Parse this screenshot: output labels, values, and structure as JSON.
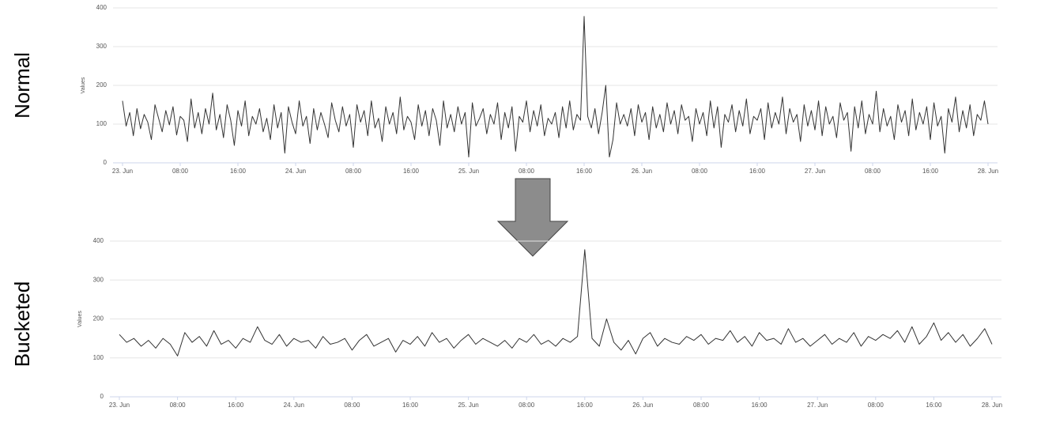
{
  "chart_data": [
    {
      "type": "line",
      "title": "Normal",
      "y_label": "Values",
      "color": "#333333",
      "grid": true,
      "xlim": [
        0,
        120
      ],
      "ylim": [
        0,
        400
      ],
      "yticks": [
        0,
        100,
        200,
        300,
        400
      ],
      "xticks": [
        {
          "value": 0,
          "label": "23. Jun"
        },
        {
          "value": 8,
          "label": "08:00"
        },
        {
          "value": 16,
          "label": "16:00"
        },
        {
          "value": 24,
          "label": "24. Jun"
        },
        {
          "value": 32,
          "label": "08:00"
        },
        {
          "value": 40,
          "label": "16:00"
        },
        {
          "value": 48,
          "label": "25. Jun"
        },
        {
          "value": 56,
          "label": "08:00"
        },
        {
          "value": 64,
          "label": "16:00"
        },
        {
          "value": 72,
          "label": "26. Jun"
        },
        {
          "value": 80,
          "label": "08:00"
        },
        {
          "value": 88,
          "label": "16:00"
        },
        {
          "value": 96,
          "label": "27. Jun"
        },
        {
          "value": 104,
          "label": "08:00"
        },
        {
          "value": 112,
          "label": "16:00"
        },
        {
          "value": 120,
          "label": "28. Jun"
        }
      ],
      "x": [
        0,
        0.5,
        1,
        1.5,
        2,
        2.5,
        3,
        3.5,
        4,
        4.5,
        5,
        5.5,
        6,
        6.5,
        7,
        7.5,
        8,
        8.5,
        9,
        9.5,
        10,
        10.5,
        11,
        11.5,
        12,
        12.5,
        13,
        13.5,
        14,
        14.5,
        15,
        15.5,
        16,
        16.5,
        17,
        17.5,
        18,
        18.5,
        19,
        19.5,
        20,
        20.5,
        21,
        21.5,
        22,
        22.5,
        23,
        23.5,
        24,
        24.5,
        25,
        25.5,
        26,
        26.5,
        27,
        27.5,
        28,
        28.5,
        29,
        29.5,
        30,
        30.5,
        31,
        31.5,
        32,
        32.5,
        33,
        33.5,
        34,
        34.5,
        35,
        35.5,
        36,
        36.5,
        37,
        37.5,
        38,
        38.5,
        39,
        39.5,
        40,
        40.5,
        41,
        41.5,
        42,
        42.5,
        43,
        43.5,
        44,
        44.5,
        45,
        45.5,
        46,
        46.5,
        47,
        47.5,
        48,
        48.5,
        49,
        49.5,
        50,
        50.5,
        51,
        51.5,
        52,
        52.5,
        53,
        53.5,
        54,
        54.5,
        55,
        55.5,
        56,
        56.5,
        57,
        57.5,
        58,
        58.5,
        59,
        59.5,
        60,
        60.5,
        61,
        61.5,
        62,
        62.5,
        63,
        63.5,
        64,
        64.5,
        65,
        65.5,
        66,
        66.5,
        67,
        67.5,
        68,
        68.5,
        69,
        69.5,
        70,
        70.5,
        71,
        71.5,
        72,
        72.5,
        73,
        73.5,
        74,
        74.5,
        75,
        75.5,
        76,
        76.5,
        77,
        77.5,
        78,
        78.5,
        79,
        79.5,
        80,
        80.5,
        81,
        81.5,
        82,
        82.5,
        83,
        83.5,
        84,
        84.5,
        85,
        85.5,
        86,
        86.5,
        87,
        87.5,
        88,
        88.5,
        89,
        89.5,
        90,
        90.5,
        91,
        91.5,
        92,
        92.5,
        93,
        93.5,
        94,
        94.5,
        95,
        95.5,
        96,
        96.5,
        97,
        97.5,
        98,
        98.5,
        99,
        99.5,
        100,
        100.5,
        101,
        101.5,
        102,
        102.5,
        103,
        103.5,
        104,
        104.5,
        105,
        105.5,
        106,
        106.5,
        107,
        107.5,
        108,
        108.5,
        109,
        109.5,
        110,
        110.5,
        111,
        111.5,
        112,
        112.5,
        113,
        113.5,
        114,
        114.5,
        115,
        115.5,
        116,
        116.5,
        117,
        117.5,
        118,
        118.5,
        119,
        119.5,
        120
      ],
      "values": [
        160,
        95,
        130,
        70,
        140,
        88,
        125,
        105,
        60,
        150,
        115,
        80,
        135,
        98,
        145,
        72,
        120,
        110,
        55,
        165,
        90,
        130,
        75,
        140,
        100,
        180,
        85,
        125,
        65,
        150,
        110,
        45,
        135,
        95,
        160,
        70,
        120,
        100,
        140,
        80,
        115,
        60,
        150,
        90,
        130,
        25,
        145,
        105,
        75,
        160,
        95,
        120,
        50,
        140,
        85,
        130,
        100,
        65,
        155,
        110,
        80,
        145,
        95,
        125,
        40,
        150,
        105,
        135,
        70,
        160,
        90,
        115,
        55,
        145,
        100,
        130,
        75,
        170,
        85,
        120,
        105,
        60,
        150,
        95,
        135,
        70,
        140,
        110,
        45,
        160,
        90,
        125,
        80,
        145,
        100,
        130,
        15,
        155,
        95,
        115,
        140,
        75,
        125,
        100,
        155,
        60,
        130,
        90,
        145,
        30,
        120,
        105,
        160,
        80,
        135,
        95,
        150,
        70,
        115,
        100,
        130,
        65,
        145,
        90,
        160,
        85,
        125,
        110,
        378,
        120,
        90,
        140,
        75,
        130,
        200,
        15,
        60,
        155,
        100,
        125,
        95,
        140,
        70,
        150,
        105,
        130,
        60,
        145,
        90,
        125,
        80,
        155,
        100,
        135,
        75,
        150,
        110,
        120,
        55,
        140,
        100,
        130,
        70,
        160,
        90,
        145,
        40,
        125,
        105,
        150,
        80,
        135,
        95,
        165,
        75,
        120,
        110,
        140,
        60,
        155,
        90,
        130,
        100,
        170,
        75,
        140,
        105,
        125,
        55,
        150,
        95,
        135,
        85,
        160,
        70,
        145,
        100,
        120,
        65,
        155,
        110,
        130,
        30,
        145,
        90,
        160,
        75,
        125,
        100,
        185,
        80,
        140,
        95,
        120,
        60,
        150,
        105,
        135,
        70,
        165,
        85,
        130,
        100,
        145,
        60,
        155,
        95,
        120,
        25,
        140,
        105,
        170,
        80,
        135,
        90,
        150,
        70,
        125,
        110,
        160,
        100
      ]
    },
    {
      "type": "line",
      "title": "Bucketed",
      "y_label": "Values",
      "color": "#333333",
      "grid": true,
      "xlim": [
        0,
        120
      ],
      "ylim": [
        0,
        400
      ],
      "yticks": [
        0,
        100,
        200,
        300,
        400
      ],
      "xticks": [
        {
          "value": 0,
          "label": "23. Jun"
        },
        {
          "value": 8,
          "label": "08:00"
        },
        {
          "value": 16,
          "label": "16:00"
        },
        {
          "value": 24,
          "label": "24. Jun"
        },
        {
          "value": 32,
          "label": "08:00"
        },
        {
          "value": 40,
          "label": "16:00"
        },
        {
          "value": 48,
          "label": "25. Jun"
        },
        {
          "value": 56,
          "label": "08:00"
        },
        {
          "value": 64,
          "label": "16:00"
        },
        {
          "value": 72,
          "label": "26. Jun"
        },
        {
          "value": 80,
          "label": "08:00"
        },
        {
          "value": 88,
          "label": "16:00"
        },
        {
          "value": 96,
          "label": "27. Jun"
        },
        {
          "value": 104,
          "label": "08:00"
        },
        {
          "value": 112,
          "label": "16:00"
        },
        {
          "value": 120,
          "label": "28. Jun"
        }
      ],
      "x": [
        0,
        1,
        2,
        3,
        4,
        5,
        6,
        7,
        8,
        9,
        10,
        11,
        12,
        13,
        14,
        15,
        16,
        17,
        18,
        19,
        20,
        21,
        22,
        23,
        24,
        25,
        26,
        27,
        28,
        29,
        30,
        31,
        32,
        33,
        34,
        35,
        36,
        37,
        38,
        39,
        40,
        41,
        42,
        43,
        44,
        45,
        46,
        47,
        48,
        49,
        50,
        51,
        52,
        53,
        54,
        55,
        56,
        57,
        58,
        59,
        60,
        61,
        62,
        63,
        64,
        65,
        66,
        67,
        68,
        69,
        70,
        71,
        72,
        73,
        74,
        75,
        76,
        77,
        78,
        79,
        80,
        81,
        82,
        83,
        84,
        85,
        86,
        87,
        88,
        89,
        90,
        91,
        92,
        93,
        94,
        95,
        96,
        97,
        98,
        99,
        100,
        101,
        102,
        103,
        104,
        105,
        106,
        107,
        108,
        109,
        110,
        111,
        112,
        113,
        114,
        115,
        116,
        117,
        118,
        119,
        120
      ],
      "values": [
        160,
        140,
        150,
        130,
        145,
        125,
        150,
        135,
        105,
        165,
        140,
        155,
        130,
        170,
        135,
        145,
        125,
        150,
        140,
        180,
        145,
        135,
        160,
        130,
        150,
        140,
        145,
        125,
        155,
        135,
        140,
        150,
        120,
        145,
        160,
        130,
        140,
        150,
        115,
        145,
        135,
        155,
        130,
        165,
        140,
        150,
        125,
        145,
        160,
        135,
        150,
        140,
        130,
        145,
        125,
        150,
        140,
        160,
        135,
        145,
        130,
        150,
        140,
        155,
        378,
        150,
        130,
        200,
        140,
        120,
        145,
        110,
        150,
        165,
        130,
        150,
        140,
        135,
        155,
        145,
        160,
        135,
        150,
        145,
        170,
        140,
        155,
        130,
        165,
        145,
        150,
        135,
        175,
        140,
        150,
        130,
        145,
        160,
        135,
        150,
        140,
        165,
        130,
        155,
        145,
        160,
        150,
        170,
        140,
        180,
        135,
        155,
        190,
        145,
        165,
        140,
        160,
        130,
        150,
        175,
        135
      ]
    }
  ]
}
